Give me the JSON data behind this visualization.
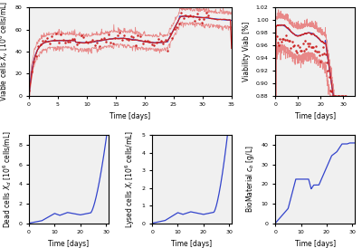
{
  "top_left": {
    "ylabel": "Viable cells $X_v$ [$10^6$ cells/mL]",
    "xlabel": "Time [days]",
    "xlim": [
      0,
      35
    ],
    "ylim": [
      0,
      80
    ]
  },
  "top_right": {
    "ylabel": "Viability Viab [%]",
    "xlabel": "Time [days]",
    "xlim": [
      0,
      35
    ],
    "ylim": [
      0.88,
      1.02
    ]
  },
  "bot_left": {
    "ylabel": "Dead cells $X_d$ [$10^6$ cells/mL]",
    "xlabel": "Time [days]",
    "xlim": [
      0,
      31
    ],
    "ylim": [
      0,
      9
    ]
  },
  "bot_mid": {
    "ylabel": "Lysed cells $X_l$ [$10^6$ cells/mL]",
    "xlabel": "Time [days]",
    "xlim": [
      0,
      31
    ],
    "ylim": [
      0,
      5
    ]
  },
  "bot_right": {
    "ylabel": "BioMaterial $c_b$ [g/L]",
    "xlabel": "Time [days]",
    "xlim": [
      0,
      31
    ],
    "ylim": [
      0,
      45
    ]
  },
  "line_color_red": "#cc2222",
  "line_color_pink": "#e88888",
  "line_color_blue": "#3344cc",
  "bg_color": "#f0f0f0"
}
